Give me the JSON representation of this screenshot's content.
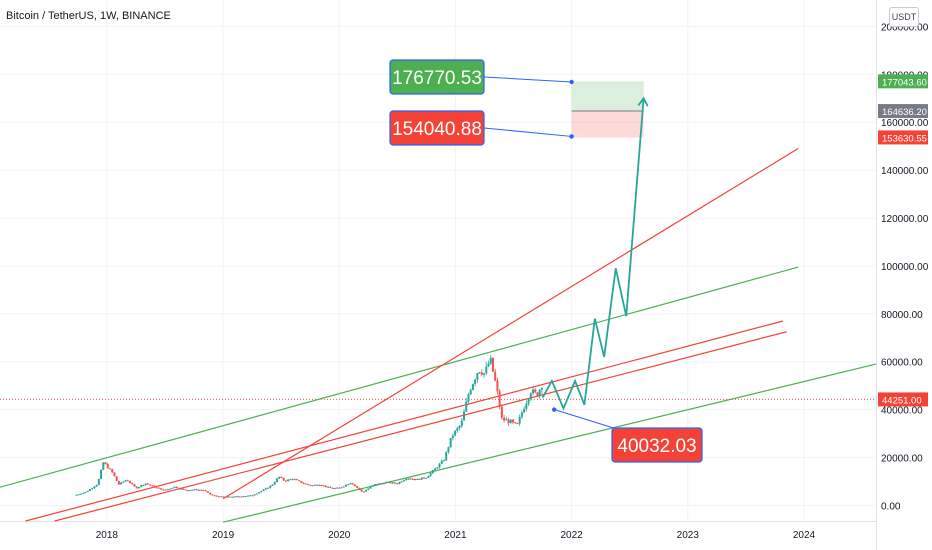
{
  "header": {
    "title": "Bitcoin / TetherUS, 1W, BINANCE",
    "currency_button": "USDT"
  },
  "colors": {
    "green": "#4caf50",
    "red": "#f44336",
    "teal": "#26a69a",
    "blue": "#2962ff",
    "price_line": "#ef5350",
    "grid": "#f0f3fa"
  },
  "chart_data": {
    "type": "candlestick",
    "xlim": [
      2017.08,
      2024.62
    ],
    "ylim": [
      -6500,
      211000
    ],
    "x_ticks": [
      "2018",
      "2019",
      "2020",
      "2021",
      "2022",
      "2023",
      "2024"
    ],
    "y_ticks": [
      "0.00",
      "20000.00",
      "40000.00",
      "60000.00",
      "80000.00",
      "100000.00",
      "120000.00",
      "140000.00",
      "160000.00",
      "180000.00",
      "200000.00"
    ],
    "grid": true,
    "price_line": {
      "value": 44251,
      "label": "44251.00"
    },
    "price_labels": [
      {
        "value": 177043.6,
        "label": "177043.60",
        "color": "#4caf50"
      },
      {
        "value": 164636.2,
        "label": "164636.20",
        "color": "#787b86"
      },
      {
        "value": 153630.55,
        "label": "153630.55",
        "color": "#f44336"
      }
    ],
    "callouts": [
      {
        "text": "176770.53",
        "color": "#4caf50",
        "point": [
          2022.0,
          176770
        ]
      },
      {
        "text": "154040.88",
        "color": "#f44336",
        "point": [
          2022.0,
          154041
        ]
      },
      {
        "text": "40032.03",
        "color": "#f44336",
        "point": [
          2021.85,
          40032
        ]
      }
    ],
    "target_box": {
      "x": [
        2022.0,
        2022.62
      ],
      "stop": 153630.55,
      "entry": 164636.2,
      "target": 177043.6
    },
    "trend_lines": [
      {
        "color": "#4caf50",
        "points": [
          [
            2017.08,
            7600
          ],
          [
            2023.95,
            99500
          ]
        ]
      },
      {
        "color": "#4caf50",
        "points": [
          [
            2019.0,
            -7000
          ],
          [
            2024.62,
            59000
          ]
        ]
      },
      {
        "color": "#f44336",
        "points": [
          [
            2019.0,
            2800
          ],
          [
            2023.95,
            149000
          ]
        ]
      },
      {
        "color": "#f44336",
        "points": [
          [
            2017.3,
            -6500
          ],
          [
            2023.82,
            77000
          ]
        ]
      },
      {
        "color": "#f44336",
        "points": [
          [
            2017.55,
            -6500
          ],
          [
            2023.85,
            72500
          ]
        ]
      }
    ],
    "projection": {
      "color": "#26a69a",
      "points": [
        [
          2021.75,
          45000
        ],
        [
          2021.83,
          52000
        ],
        [
          2021.93,
          40500
        ],
        [
          2022.03,
          52000
        ],
        [
          2022.11,
          42000
        ],
        [
          2022.2,
          78000
        ],
        [
          2022.28,
          62000
        ],
        [
          2022.38,
          99000
        ],
        [
          2022.47,
          79000
        ],
        [
          2022.62,
          170000
        ]
      ]
    },
    "candles": {
      "anchors": [
        [
          2017.72,
          4200
        ],
        [
          2017.82,
          5600
        ],
        [
          2017.92,
          9000
        ],
        [
          2017.97,
          18000
        ],
        [
          2018.05,
          13500
        ],
        [
          2018.1,
          8700
        ],
        [
          2018.17,
          10800
        ],
        [
          2018.25,
          7200
        ],
        [
          2018.33,
          9200
        ],
        [
          2018.42,
          7500
        ],
        [
          2018.5,
          6300
        ],
        [
          2018.58,
          7800
        ],
        [
          2018.67,
          6400
        ],
        [
          2018.75,
          6600
        ],
        [
          2018.83,
          6400
        ],
        [
          2018.9,
          4300
        ],
        [
          2018.96,
          3700
        ],
        [
          2019.05,
          3600
        ],
        [
          2019.15,
          3800
        ],
        [
          2019.25,
          4200
        ],
        [
          2019.35,
          6500
        ],
        [
          2019.42,
          8500
        ],
        [
          2019.48,
          12000
        ],
        [
          2019.53,
          10200
        ],
        [
          2019.6,
          11200
        ],
        [
          2019.67,
          9600
        ],
        [
          2019.75,
          8300
        ],
        [
          2019.83,
          8800
        ],
        [
          2019.92,
          7300
        ],
        [
          2020.0,
          7200
        ],
        [
          2020.1,
          9600
        ],
        [
          2020.2,
          5500
        ],
        [
          2020.3,
          8700
        ],
        [
          2020.4,
          9600
        ],
        [
          2020.5,
          9200
        ],
        [
          2020.58,
          11500
        ],
        [
          2020.67,
          10800
        ],
        [
          2020.75,
          11800
        ],
        [
          2020.83,
          15500
        ],
        [
          2020.9,
          19000
        ],
        [
          2020.97,
          29000
        ],
        [
          2021.05,
          34000
        ],
        [
          2021.12,
          48000
        ],
        [
          2021.2,
          57000
        ],
        [
          2021.25,
          55000
        ],
        [
          2021.3,
          61000
        ],
        [
          2021.35,
          50000
        ],
        [
          2021.4,
          36000
        ],
        [
          2021.47,
          35000
        ],
        [
          2021.53,
          33000
        ],
        [
          2021.58,
          40000
        ],
        [
          2021.65,
          48000
        ],
        [
          2021.7,
          46000
        ],
        [
          2021.75,
          51000
        ]
      ],
      "up_color": "#26a69a",
      "down_color": "#ef5350"
    }
  }
}
